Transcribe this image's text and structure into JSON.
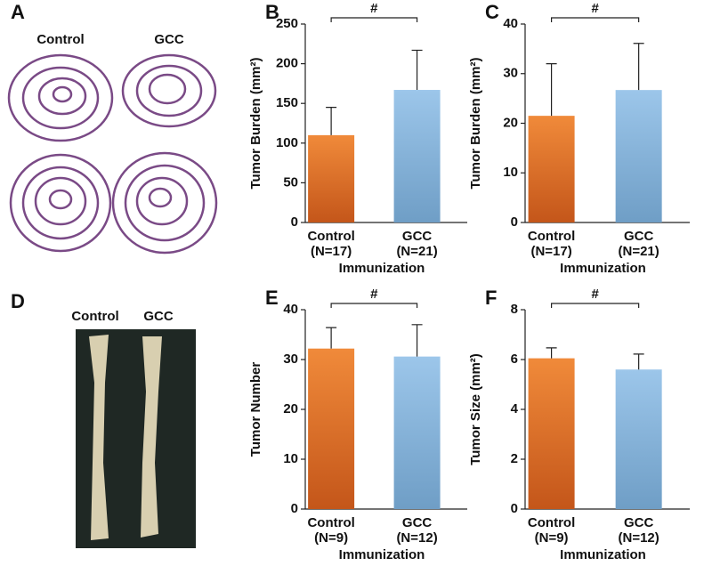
{
  "images": [
    {
      "label": "A",
      "captions": [
        "Control",
        "GCC"
      ]
    },
    {
      "label": "D",
      "captions": [
        "Control",
        "GCC"
      ]
    }
  ],
  "chart_data": [
    {
      "type": "bar",
      "label": "B",
      "ylabel": "Tumor Burden (mm²)",
      "xlabel": "Immunization",
      "categories": [
        "Control",
        "GCC"
      ],
      "n_labels": [
        "(N=17)",
        "(N=21)"
      ],
      "values": [
        110,
        167
      ],
      "errors": [
        35,
        50
      ],
      "colors": [
        "#e8772e",
        "#8fbbe0"
      ],
      "ylim": [
        0,
        250
      ],
      "yticks": [
        0,
        50,
        100,
        150,
        200,
        250
      ],
      "annotation": "#"
    },
    {
      "type": "bar",
      "label": "C",
      "ylabel": "Tumor Burden (mm²)",
      "xlabel": "Immunization",
      "categories": [
        "Control",
        "GCC"
      ],
      "n_labels": [
        "(N=17)",
        "(N=21)"
      ],
      "values": [
        21.5,
        26.7
      ],
      "errors": [
        10.5,
        9.4
      ],
      "colors": [
        "#e8772e",
        "#8fbbe0"
      ],
      "ylim": [
        0,
        40
      ],
      "yticks": [
        0,
        10,
        20,
        30,
        40
      ],
      "annotation": "#"
    },
    {
      "type": "bar",
      "label": "E",
      "ylabel": "Tumor Number",
      "xlabel": "Immunization",
      "categories": [
        "Control",
        "GCC"
      ],
      "n_labels": [
        "(N=9)",
        "(N=12)"
      ],
      "values": [
        32.2,
        30.6
      ],
      "errors": [
        4.2,
        6.4
      ],
      "colors": [
        "#e8772e",
        "#8fbbe0"
      ],
      "ylim": [
        0,
        40
      ],
      "yticks": [
        0,
        10,
        20,
        30,
        40
      ],
      "annotation": "#"
    },
    {
      "type": "bar",
      "label": "F",
      "ylabel": "Tumor Size (mm²)",
      "xlabel": "Immunization",
      "categories": [
        "Control",
        "GCC"
      ],
      "n_labels": [
        "(N=9)",
        "(N=12)"
      ],
      "values": [
        6.05,
        5.6
      ],
      "errors": [
        0.42,
        0.62
      ],
      "colors": [
        "#e8772e",
        "#8fbbe0"
      ],
      "ylim": [
        0,
        8
      ],
      "yticks": [
        0,
        2,
        4,
        6,
        8
      ],
      "annotation": "#"
    }
  ]
}
